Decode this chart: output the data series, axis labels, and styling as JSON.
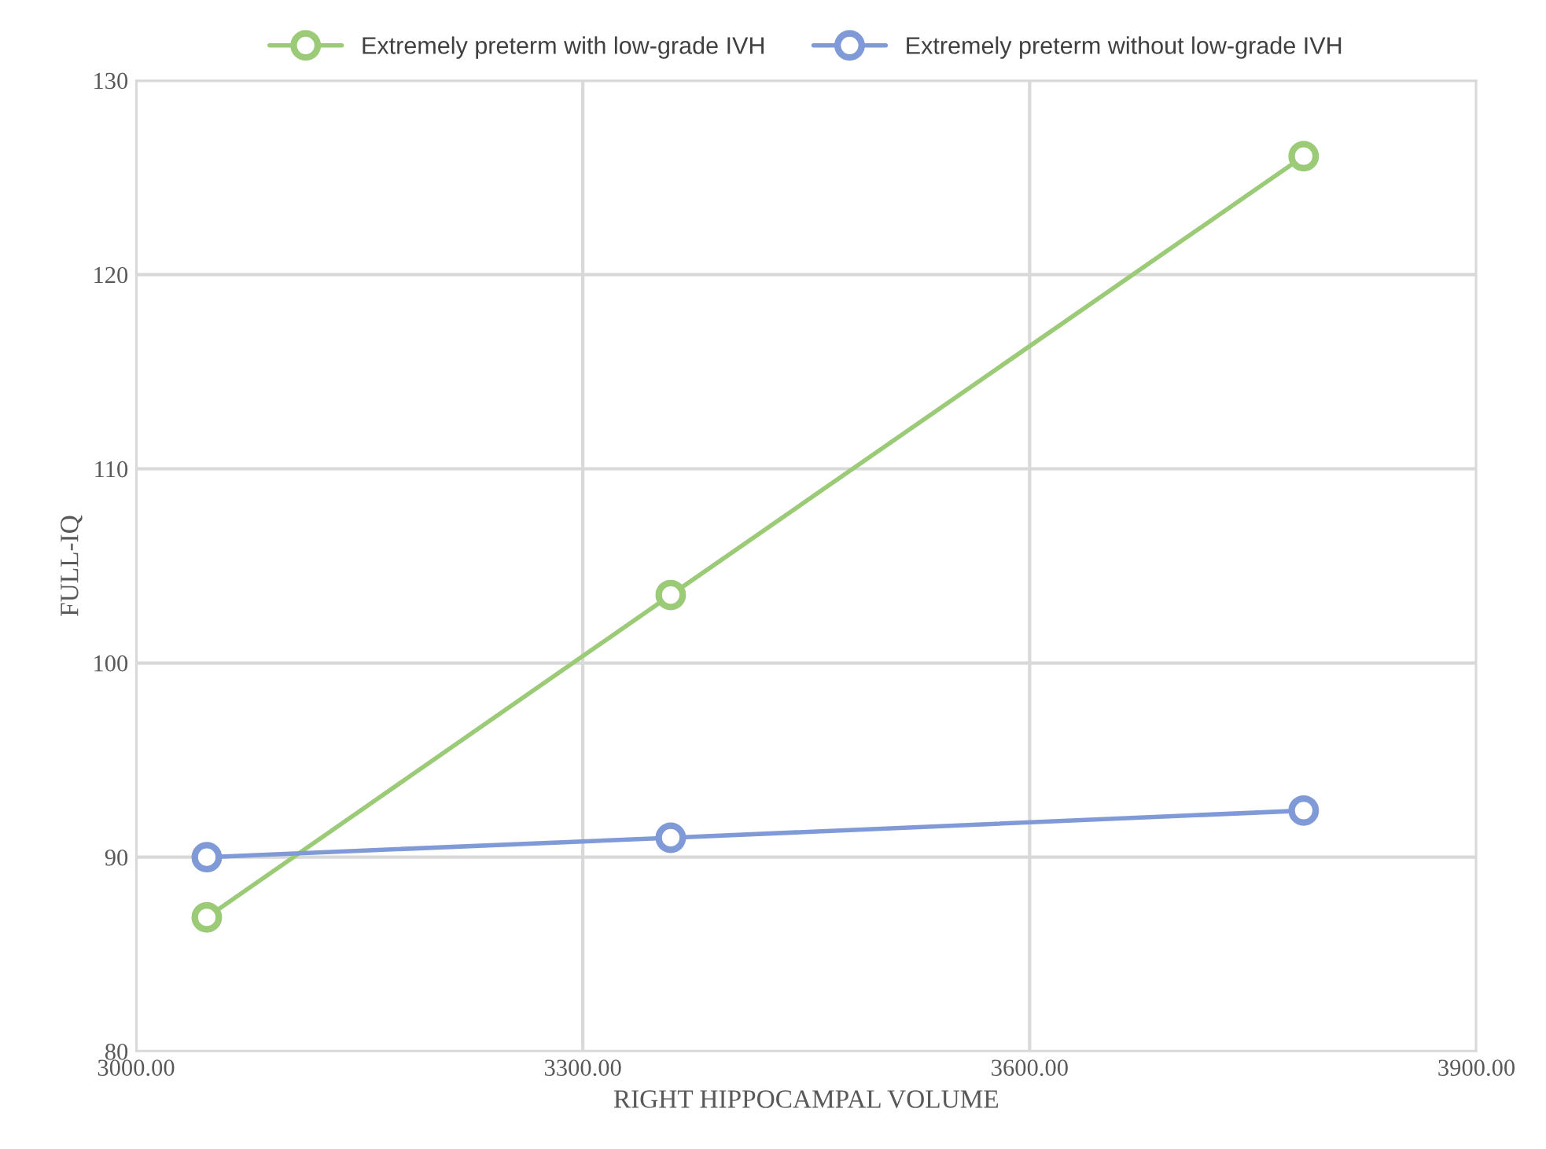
{
  "chart_data": {
    "type": "line",
    "xlabel": "RIGHT HIPPOCAMPAL VOLUME",
    "ylabel": "FULL-IQ",
    "x": [
      3047.5,
      3359,
      3784
    ],
    "series": [
      {
        "name": "Extremely preterm with low-grade IVH",
        "color": "#9ccb78",
        "values": [
          86.9,
          103.5,
          126.1
        ]
      },
      {
        "name": "Extremely preterm without low-grade IVH",
        "color": "#7f9ad6",
        "values": [
          90.0,
          91.0,
          92.4
        ]
      }
    ],
    "xlim": [
      3000,
      3900
    ],
    "xticks": [
      {
        "value": 3000,
        "label": "3000.00"
      },
      {
        "value": 3300,
        "label": "3300.00"
      },
      {
        "value": 3600,
        "label": "3600.00"
      },
      {
        "value": 3900,
        "label": "3900.00"
      }
    ],
    "ylim": [
      80,
      130
    ],
    "yticks": [
      80,
      90,
      100,
      110,
      120,
      130
    ],
    "grid": true,
    "legend": "top",
    "marker": "circle",
    "line_style": "solid"
  }
}
